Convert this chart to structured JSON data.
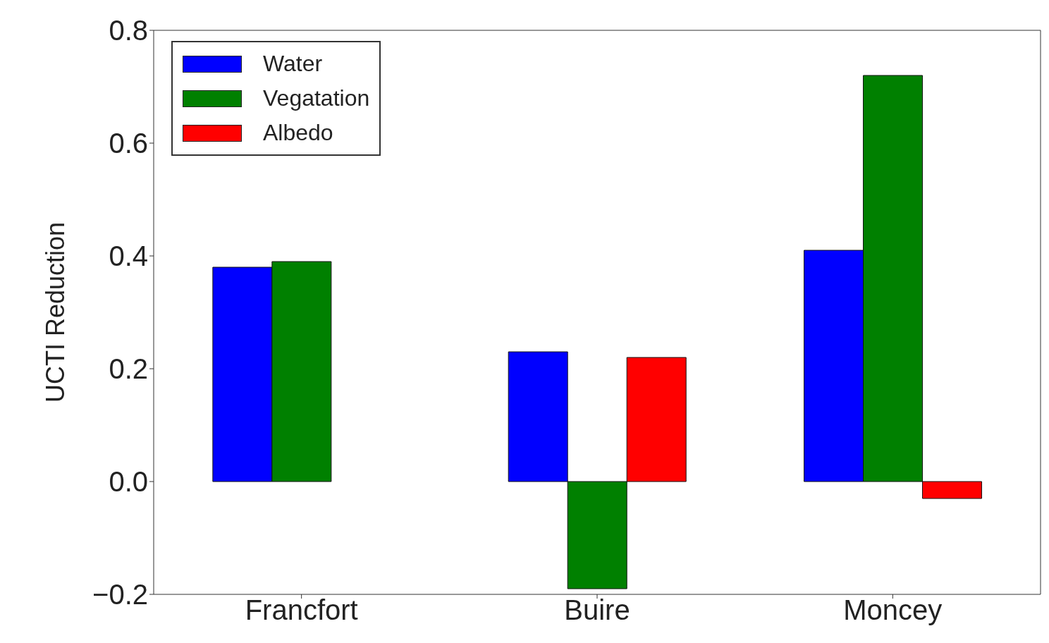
{
  "chart_data": {
    "type": "bar",
    "ylabel": "UCTI Reduction",
    "categories": [
      "Francfort",
      "Buire",
      "Moncey"
    ],
    "series": [
      {
        "name": "Water",
        "color": "#0000ff",
        "values": [
          0.38,
          0.23,
          0.41
        ]
      },
      {
        "name": "Vegatation",
        "color": "#008000",
        "values": [
          0.39,
          -0.19,
          0.72
        ]
      },
      {
        "name": "Albedo",
        "color": "#ff0000",
        "values": [
          0,
          0.22,
          -0.03
        ]
      }
    ],
    "ylim": [
      -0.2,
      0.8
    ],
    "yticks": [
      {
        "value": -0.2,
        "label": "−0.2"
      },
      {
        "value": 0,
        "label": "0.0"
      },
      {
        "value": 0.2,
        "label": "0.2"
      },
      {
        "value": 0.4,
        "label": "0.4"
      },
      {
        "value": 0.6,
        "label": "0.6"
      },
      {
        "value": 0.8,
        "label": "0.8"
      }
    ],
    "grid": false,
    "legend": "top left"
  }
}
